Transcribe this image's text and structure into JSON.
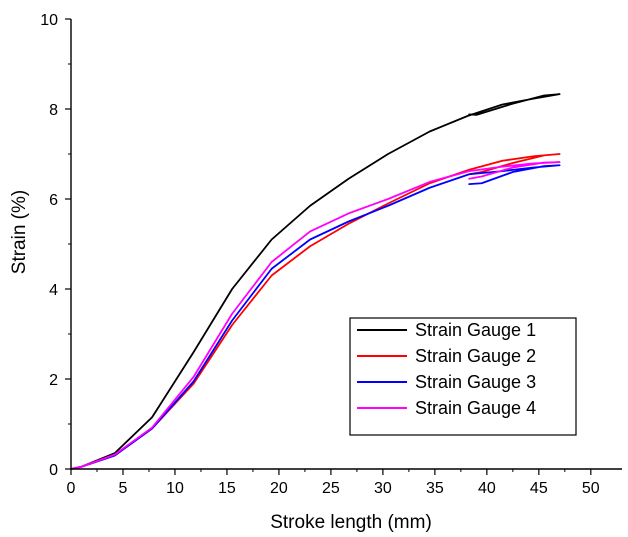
{
  "chart_data": {
    "type": "line",
    "xlabel": "Stroke length (mm)",
    "ylabel": "Strain (%)",
    "xlim": [
      0,
      53
    ],
    "ylim": [
      0,
      10
    ],
    "x_ticks": [
      "0",
      "5",
      "10",
      "15",
      "20",
      "25",
      "30",
      "35",
      "40",
      "45",
      "50"
    ],
    "y_ticks": [
      "0",
      "2",
      "4",
      "6",
      "8",
      "10"
    ],
    "grid": false,
    "legend_position": "bottom-right",
    "series": [
      {
        "name": "Strain Gauge 1",
        "color": "#000000",
        "points": [
          [
            0,
            0
          ],
          [
            1,
            0.05
          ],
          [
            4.2,
            0.35
          ],
          [
            7.8,
            1.15
          ],
          [
            11.8,
            2.6
          ],
          [
            15.5,
            4.0
          ],
          [
            19.3,
            5.1
          ],
          [
            23,
            5.85
          ],
          [
            26.7,
            6.45
          ],
          [
            30.5,
            7.0
          ],
          [
            34.5,
            7.5
          ],
          [
            38.2,
            7.85
          ],
          [
            41.5,
            8.1
          ],
          [
            44.5,
            8.23
          ],
          [
            47,
            8.33
          ],
          [
            45.5,
            8.3
          ],
          [
            42.5,
            8.12
          ],
          [
            39,
            7.87
          ],
          [
            38.3,
            7.88
          ]
        ]
      },
      {
        "name": "Strain Gauge 2",
        "color": "#ff0000",
        "points": [
          [
            0,
            0
          ],
          [
            1,
            0.05
          ],
          [
            4.2,
            0.3
          ],
          [
            7.8,
            0.9
          ],
          [
            11.8,
            1.9
          ],
          [
            15.5,
            3.2
          ],
          [
            19.3,
            4.3
          ],
          [
            23,
            4.95
          ],
          [
            26.7,
            5.45
          ],
          [
            30.5,
            5.9
          ],
          [
            34.5,
            6.35
          ],
          [
            38.3,
            6.65
          ],
          [
            41.5,
            6.85
          ],
          [
            44.5,
            6.95
          ],
          [
            47,
            7.0
          ],
          [
            45.5,
            6.97
          ],
          [
            42.5,
            6.8
          ],
          [
            39.5,
            6.6
          ],
          [
            38.3,
            6.55
          ]
        ]
      },
      {
        "name": "Strain Gauge 3",
        "color": "#0000ff",
        "points": [
          [
            0,
            0
          ],
          [
            1,
            0.05
          ],
          [
            4.2,
            0.3
          ],
          [
            7.8,
            0.9
          ],
          [
            11.8,
            1.95
          ],
          [
            15.5,
            3.3
          ],
          [
            19.3,
            4.45
          ],
          [
            23,
            5.1
          ],
          [
            26.7,
            5.5
          ],
          [
            30.5,
            5.85
          ],
          [
            34.5,
            6.25
          ],
          [
            38.3,
            6.55
          ],
          [
            41.5,
            6.62
          ],
          [
            44.5,
            6.7
          ],
          [
            47,
            6.75
          ],
          [
            45.5,
            6.73
          ],
          [
            42.5,
            6.6
          ],
          [
            39.5,
            6.35
          ],
          [
            38.3,
            6.33
          ]
        ]
      },
      {
        "name": "Strain Gauge 4",
        "color": "#ff00ff",
        "points": [
          [
            0,
            0
          ],
          [
            1,
            0.05
          ],
          [
            4.2,
            0.32
          ],
          [
            7.8,
            0.92
          ],
          [
            11.8,
            2.05
          ],
          [
            15.5,
            3.45
          ],
          [
            19.3,
            4.6
          ],
          [
            23,
            5.28
          ],
          [
            26.7,
            5.68
          ],
          [
            30.5,
            6.0
          ],
          [
            34.5,
            6.38
          ],
          [
            38.3,
            6.62
          ],
          [
            41.5,
            6.72
          ],
          [
            44.5,
            6.79
          ],
          [
            47,
            6.82
          ],
          [
            45.5,
            6.81
          ],
          [
            42.5,
            6.7
          ],
          [
            39.5,
            6.5
          ],
          [
            38.3,
            6.45
          ]
        ]
      }
    ]
  }
}
